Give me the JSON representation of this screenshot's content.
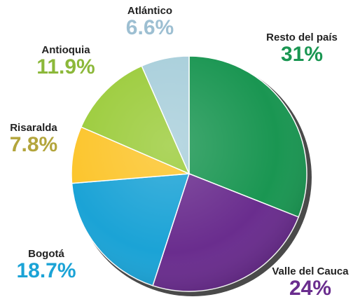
{
  "chart_data": {
    "type": "pie",
    "title": "",
    "slices": [
      {
        "label": "Resto del país",
        "value": 31,
        "value_label": "31%",
        "color": "#1a9652",
        "label_color": "#1a9652"
      },
      {
        "label": "Valle del Cauca",
        "value": 24,
        "value_label": "24%",
        "color": "#6a2d8e",
        "label_color": "#6a2d8e"
      },
      {
        "label": "Bogotá",
        "value": 18.7,
        "value_label": "18.7%",
        "color": "#1ba3d6",
        "label_color": "#1ba3d6"
      },
      {
        "label": "Risaralda",
        "value": 7.8,
        "value_label": "7.8%",
        "color": "#fcc52c",
        "label_color": "#b3a53c"
      },
      {
        "label": "Antioquia",
        "value": 11.9,
        "value_label": "11.9%",
        "color": "#9ccc3c",
        "label_color": "#8cb83a"
      },
      {
        "label": "Atlántico",
        "value": 6.6,
        "value_label": "6.6%",
        "color": "#a9cfdb",
        "label_color": "#9dbfd2"
      }
    ],
    "start": "12 o'clock",
    "direction": "clockwise",
    "legend": "none"
  }
}
